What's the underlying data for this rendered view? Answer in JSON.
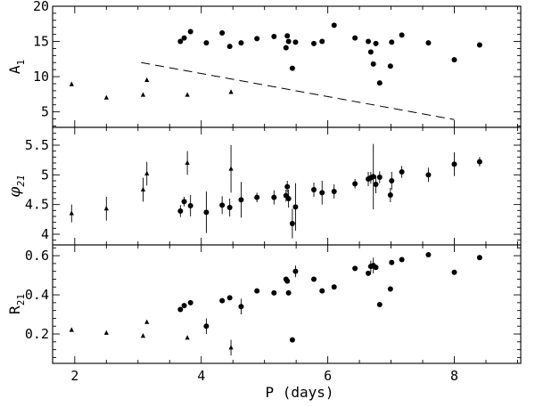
{
  "chart_data": {
    "type": "scatter",
    "x_axis": {
      "label": "P (days)",
      "lim": [
        1.65,
        9.05
      ],
      "ticks": [
        2,
        4,
        6,
        8
      ],
      "tick_labels": [
        "2",
        "4",
        "6",
        "8"
      ]
    },
    "panels": [
      {
        "id": "A1",
        "ylabel_main": "A",
        "ylabel_sub": "1",
        "ylim": [
          2.8,
          20
        ],
        "yticks": [
          5,
          10,
          15,
          20
        ],
        "ytick_labels": [
          "5",
          "10",
          "15",
          "20"
        ],
        "series": [
          {
            "marker": "triangle",
            "points": [
              {
                "x": 1.95,
                "y": 8.9
              },
              {
                "x": 2.5,
                "y": 7.0
              },
              {
                "x": 3.08,
                "y": 7.4
              },
              {
                "x": 3.14,
                "y": 9.5
              },
              {
                "x": 3.78,
                "y": 7.4
              },
              {
                "x": 4.47,
                "y": 7.8
              }
            ]
          },
          {
            "marker": "circle",
            "points": [
              {
                "x": 3.67,
                "y": 15.0
              },
              {
                "x": 3.73,
                "y": 15.5
              },
              {
                "x": 3.83,
                "y": 16.4
              },
              {
                "x": 4.08,
                "y": 14.8
              },
              {
                "x": 4.33,
                "y": 16.2
              },
              {
                "x": 4.45,
                "y": 14.3
              },
              {
                "x": 4.63,
                "y": 14.8
              },
              {
                "x": 4.88,
                "y": 15.4
              },
              {
                "x": 5.15,
                "y": 15.7
              },
              {
                "x": 5.34,
                "y": 14.1
              },
              {
                "x": 5.36,
                "y": 15.8
              },
              {
                "x": 5.38,
                "y": 15.0
              },
              {
                "x": 5.44,
                "y": 11.2
              },
              {
                "x": 5.49,
                "y": 14.9
              },
              {
                "x": 5.78,
                "y": 14.7
              },
              {
                "x": 5.91,
                "y": 15.0
              },
              {
                "x": 6.1,
                "y": 17.3
              },
              {
                "x": 6.43,
                "y": 15.5
              },
              {
                "x": 6.64,
                "y": 15.0
              },
              {
                "x": 6.68,
                "y": 13.5
              },
              {
                "x": 6.72,
                "y": 11.8
              },
              {
                "x": 6.76,
                "y": 14.7
              },
              {
                "x": 6.82,
                "y": 9.1
              },
              {
                "x": 6.99,
                "y": 11.5
              },
              {
                "x": 7.01,
                "y": 14.9
              },
              {
                "x": 7.17,
                "y": 15.9
              },
              {
                "x": 7.59,
                "y": 14.8
              },
              {
                "x": 8.0,
                "y": 12.4
              },
              {
                "x": 8.4,
                "y": 14.5
              }
            ]
          }
        ],
        "trend_line": {
          "style": "dashed",
          "x": [
            3.05,
            8.0
          ],
          "y": [
            12.0,
            3.9
          ]
        }
      },
      {
        "id": "phi21",
        "ylabel_main": "φ",
        "ylabel_sub": "21",
        "ylim": [
          3.82,
          5.8
        ],
        "yticks": [
          4,
          4.5,
          5,
          5.5
        ],
        "ytick_labels": [
          "4",
          "4.5",
          "5",
          "5.5"
        ],
        "series": [
          {
            "marker": "triangle",
            "points": [
              {
                "x": 1.95,
                "y": 4.35,
                "err": 0.15
              },
              {
                "x": 2.5,
                "y": 4.43,
                "err": 0.2
              },
              {
                "x": 3.08,
                "y": 4.75,
                "err": 0.2
              },
              {
                "x": 3.14,
                "y": 5.02,
                "err": 0.2
              },
              {
                "x": 3.78,
                "y": 5.2,
                "err": 0.2
              },
              {
                "x": 4.47,
                "y": 5.1,
                "err": 0.4
              }
            ]
          },
          {
            "marker": "circle",
            "points": [
              {
                "x": 3.67,
                "y": 4.39,
                "err": 0.1
              },
              {
                "x": 3.73,
                "y": 4.55,
                "err": 0.08
              },
              {
                "x": 3.83,
                "y": 4.48,
                "err": 0.18
              },
              {
                "x": 4.08,
                "y": 4.37,
                "err": 0.35
              },
              {
                "x": 4.33,
                "y": 4.49,
                "err": 0.15
              },
              {
                "x": 4.45,
                "y": 4.45,
                "err": 0.15
              },
              {
                "x": 4.63,
                "y": 4.58,
                "err": 0.3
              },
              {
                "x": 4.88,
                "y": 4.62,
                "err": 0.08
              },
              {
                "x": 5.15,
                "y": 4.62,
                "err": 0.12
              },
              {
                "x": 5.34,
                "y": 4.65,
                "err": 0.1
              },
              {
                "x": 5.36,
                "y": 4.8,
                "err": 0.1
              },
              {
                "x": 5.38,
                "y": 4.6,
                "err": 0.15
              },
              {
                "x": 5.44,
                "y": 4.18,
                "err": 0.25
              },
              {
                "x": 5.49,
                "y": 4.46,
                "err": 0.4
              },
              {
                "x": 5.78,
                "y": 4.75,
                "err": 0.12
              },
              {
                "x": 5.91,
                "y": 4.7,
                "err": 0.2
              },
              {
                "x": 6.1,
                "y": 4.72,
                "err": 0.12
              },
              {
                "x": 6.43,
                "y": 4.85,
                "err": 0.08
              },
              {
                "x": 6.64,
                "y": 4.93,
                "err": 0.12
              },
              {
                "x": 6.68,
                "y": 4.95,
                "err": 0.1
              },
              {
                "x": 6.72,
                "y": 4.97,
                "err": 0.55
              },
              {
                "x": 6.76,
                "y": 4.84,
                "err": 0.15
              },
              {
                "x": 6.82,
                "y": 4.96,
                "err": 0.1
              },
              {
                "x": 6.99,
                "y": 4.66,
                "err": 0.12
              },
              {
                "x": 7.01,
                "y": 4.9,
                "err": 0.15
              },
              {
                "x": 7.17,
                "y": 5.05,
                "err": 0.1
              },
              {
                "x": 7.59,
                "y": 5.0,
                "err": 0.12
              },
              {
                "x": 8.0,
                "y": 5.18,
                "err": 0.2
              },
              {
                "x": 8.4,
                "y": 5.22,
                "err": 0.08
              }
            ]
          }
        ]
      },
      {
        "id": "R21",
        "ylabel_main": "R",
        "ylabel_sub": "21",
        "ylim": [
          0.05,
          0.655
        ],
        "yticks": [
          0.2,
          0.4,
          0.6
        ],
        "ytick_labels": [
          "0.2",
          "0.4",
          "0.6"
        ],
        "series": [
          {
            "marker": "triangle",
            "points": [
              {
                "x": 1.95,
                "y": 0.22,
                "err": 0.0
              },
              {
                "x": 2.5,
                "y": 0.205,
                "err": 0.0
              },
              {
                "x": 3.08,
                "y": 0.19,
                "err": 0.0
              },
              {
                "x": 3.14,
                "y": 0.26,
                "err": 0.0
              },
              {
                "x": 3.78,
                "y": 0.18,
                "err": 0.0
              },
              {
                "x": 4.47,
                "y": 0.13,
                "err": 0.04
              }
            ]
          },
          {
            "marker": "circle",
            "points": [
              {
                "x": 3.67,
                "y": 0.325,
                "err": 0.0
              },
              {
                "x": 3.73,
                "y": 0.345,
                "err": 0.0
              },
              {
                "x": 3.83,
                "y": 0.36,
                "err": 0.0
              },
              {
                "x": 4.08,
                "y": 0.24,
                "err": 0.04
              },
              {
                "x": 4.33,
                "y": 0.37,
                "err": 0.0
              },
              {
                "x": 4.45,
                "y": 0.385,
                "err": 0.0
              },
              {
                "x": 4.63,
                "y": 0.34,
                "err": 0.04
              },
              {
                "x": 4.88,
                "y": 0.42,
                "err": 0.0
              },
              {
                "x": 5.15,
                "y": 0.41,
                "err": 0.0
              },
              {
                "x": 5.34,
                "y": 0.48,
                "err": 0.0
              },
              {
                "x": 5.36,
                "y": 0.47,
                "err": 0.0
              },
              {
                "x": 5.38,
                "y": 0.41,
                "err": 0.0
              },
              {
                "x": 5.44,
                "y": 0.17,
                "err": 0.0
              },
              {
                "x": 5.49,
                "y": 0.52,
                "err": 0.03
              },
              {
                "x": 5.78,
                "y": 0.48,
                "err": 0.0
              },
              {
                "x": 5.91,
                "y": 0.42,
                "err": 0.0
              },
              {
                "x": 6.1,
                "y": 0.44,
                "err": 0.0
              },
              {
                "x": 6.43,
                "y": 0.535,
                "err": 0.0
              },
              {
                "x": 6.64,
                "y": 0.51,
                "err": 0.0
              },
              {
                "x": 6.68,
                "y": 0.545,
                "err": 0.03
              },
              {
                "x": 6.72,
                "y": 0.55,
                "err": 0.04
              },
              {
                "x": 6.76,
                "y": 0.54,
                "err": 0.0
              },
              {
                "x": 6.82,
                "y": 0.35,
                "err": 0.0
              },
              {
                "x": 6.99,
                "y": 0.43,
                "err": 0.0
              },
              {
                "x": 7.01,
                "y": 0.565,
                "err": 0.0
              },
              {
                "x": 7.17,
                "y": 0.58,
                "err": 0.0
              },
              {
                "x": 7.59,
                "y": 0.605,
                "err": 0.0
              },
              {
                "x": 8.0,
                "y": 0.515,
                "err": 0.0
              },
              {
                "x": 8.4,
                "y": 0.59,
                "err": 0.0
              }
            ]
          }
        ]
      }
    ]
  }
}
